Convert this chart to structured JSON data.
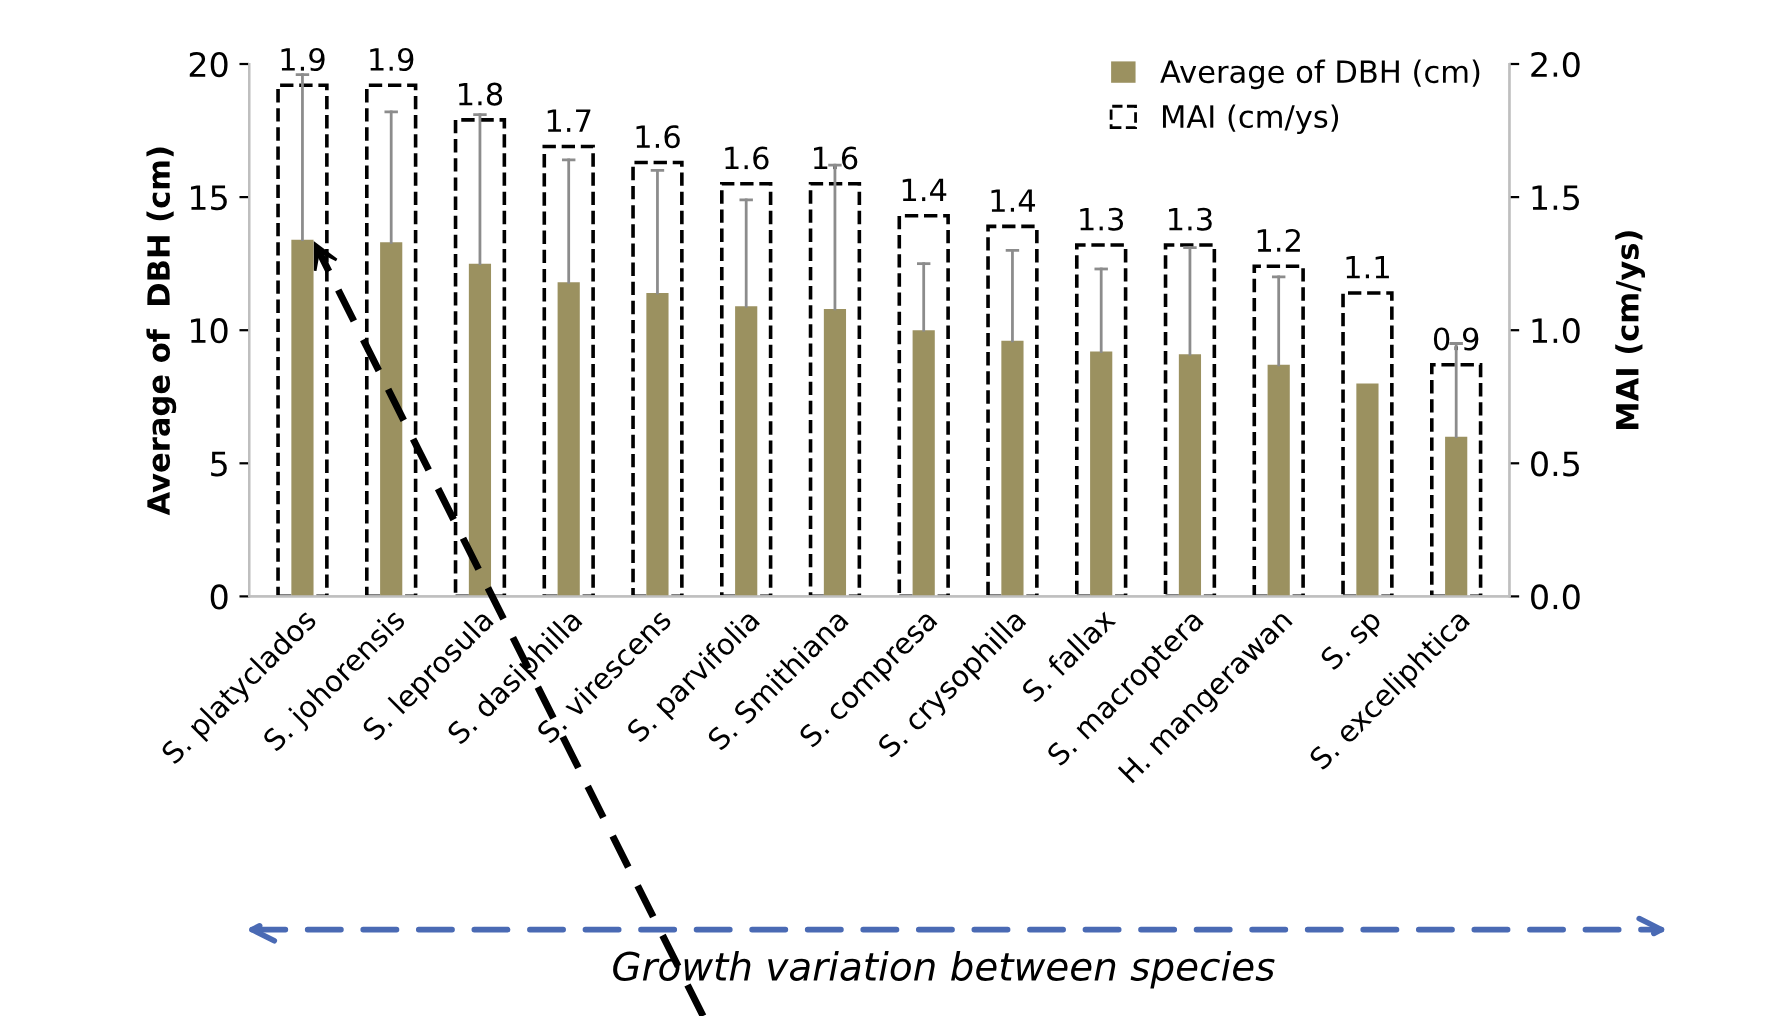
{
  "chart_data": {
    "type": "bar",
    "ylabel": "Average of  DBH (cm)",
    "y2label": "MAI (cm/ys)",
    "categories": [
      "S. platyclados",
      "S. johorensis",
      "S. leprosula",
      "S. dasiphilla",
      "S. virescens",
      "S. parvifolia",
      "S. Smithiana",
      "S. compresa",
      "S. crysophilla",
      "S. fallax",
      "S. macroptera",
      "H. mangerawan",
      "S. sp",
      "S. exceliphtica"
    ],
    "series": [
      {
        "name": "MAI (cm/ys)",
        "color": "#000000",
        "axis": "y2",
        "line_style": "dashed",
        "values": [
          1.92,
          1.92,
          1.79,
          1.69,
          1.63,
          1.55,
          1.55,
          1.43,
          1.39,
          1.32,
          1.32,
          1.24,
          1.14,
          0.87
        ],
        "value_labels": [
          "1.9",
          "1.9",
          "1.8",
          "1.7",
          "1.6",
          "1.6",
          "1.6",
          "1.4",
          "1.4",
          "1.3",
          "1.3",
          "1.2",
          "1.1",
          "0.9"
        ]
      },
      {
        "name": "Average of DBH (cm)",
        "color": "#9b9160",
        "values": [
          13.4,
          13.3,
          12.5,
          11.8,
          11.4,
          10.9,
          10.8,
          10.0,
          9.6,
          9.2,
          9.1,
          8.7,
          8.0,
          6.0
        ],
        "errors": [
          [
            13.4,
            19.6
          ],
          [
            13.3,
            18.2
          ],
          [
            12.5,
            18.1
          ],
          [
            11.8,
            16.4
          ],
          [
            11.4,
            16.0
          ],
          [
            10.9,
            14.9
          ],
          [
            10.8,
            16.2
          ],
          [
            10.0,
            12.5
          ],
          [
            9.6,
            13.0
          ],
          [
            9.2,
            12.3
          ],
          [
            9.1,
            13.1
          ],
          [
            8.7,
            12.0
          ],
          null,
          [
            6.0,
            9.5
          ]
        ]
      }
    ],
    "ylim": [
      0,
      20
    ],
    "yticks": [
      0,
      5,
      10,
      15,
      20
    ],
    "y2lim": [
      0,
      2.0
    ],
    "y2ticks": [
      {
        "value": 0,
        "label": "0.0"
      },
      {
        "value": 0.5,
        "label": "0.5"
      },
      {
        "value": 1.0,
        "label": "1.0"
      },
      {
        "value": 1.5,
        "label": "1.5"
      },
      {
        "value": 2.0,
        "label": "2.0"
      }
    ],
    "grid": false,
    "legend": "top right",
    "annotations": [
      "Growth variation between species"
    ]
  }
}
